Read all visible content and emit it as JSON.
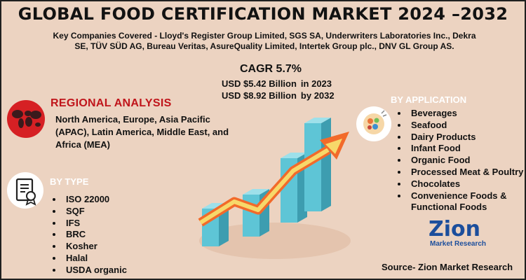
{
  "title": "GLOBAL FOOD CERTIFICATION MARKET 2024 –2032",
  "companies": {
    "line1": "Key Companies Covered - Lloyd's Register Group Limited, SGS SA, Underwriters Laboratories Inc., Dekra",
    "line2": "SE, TÜV SÜD AG, Bureau Veritas, AsureQuality Limited, Intertek Group plc., DNV GL Group AS."
  },
  "cagr": "CAGR 5.7%",
  "market_values": [
    {
      "value": "USD $5.42 Billion",
      "year": "in 2023"
    },
    {
      "value": "USD $8.92 Billion",
      "year": "by 2032"
    }
  ],
  "regional": {
    "title": "REGIONAL ANALYSIS",
    "text": "North America, Europe, Asia Pacific (APAC), Latin America, Middle East, and Africa (MEA)"
  },
  "by_type": {
    "title": "BY TYPE",
    "items": [
      "ISO 22000",
      "SQF",
      "IFS",
      "BRC",
      "Kosher",
      "Halal",
      "USDA organic"
    ]
  },
  "by_application": {
    "title": "BY APPLICATION",
    "items": [
      "Beverages",
      "Seafood",
      "Dairy Products",
      "Infant Food",
      "Organic Food",
      "Processed Meat & Poultry",
      "Chocolates",
      "Convenience Foods & Functional Foods"
    ]
  },
  "logo": {
    "name": "Zion",
    "sub": "Market Research"
  },
  "source": "Source- Zion Market Research",
  "colors": {
    "background": "#ecd3c1",
    "accent_red": "#c0151b",
    "bar_teal": "#5ec5d6",
    "arrow_orange": "#f26a2a",
    "logo_blue": "#1c4e9c"
  },
  "icons": [
    "world-map-icon",
    "certificate-document-icon",
    "food-plate-icon",
    "growth-chart-illustration"
  ]
}
